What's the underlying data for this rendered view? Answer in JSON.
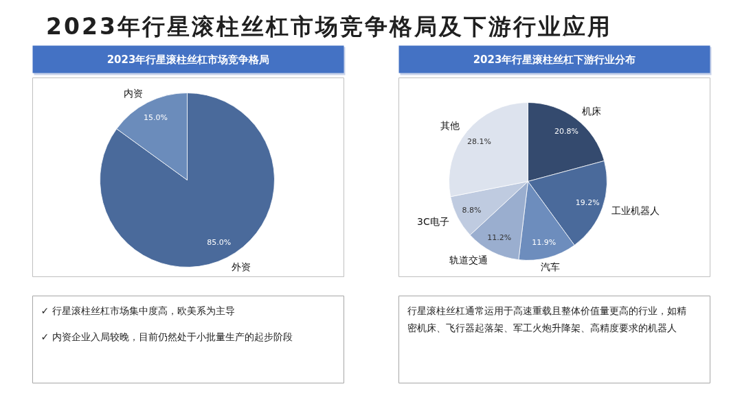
{
  "chart_data": [
    {
      "type": "pie",
      "title": "2023年行星滚柱丝杠市场竞争格局及下游行业应用",
      "subtitle": "2023年行星滚柱丝杠市场竞争格局",
      "categories": [
        "外资",
        "内资"
      ],
      "values": [
        85.0,
        15.0
      ],
      "colors": [
        "#4a6a9b",
        "#6b8cbb"
      ],
      "value_labels": [
        "85.0%",
        "15.0%"
      ],
      "annotations": [
        "✓ 行星滚柱丝杠市场集中度高，欧美系为主导",
        "✓ 内资企业入局较晚，目前仍然处于小批量生产的起步阶段"
      ]
    },
    {
      "type": "pie",
      "subtitle": "2023年行星滚柱丝杠下游行业分布",
      "categories": [
        "机床",
        "工业机器人",
        "汽车",
        "轨道交通",
        "3C电子",
        "其他"
      ],
      "values": [
        20.8,
        19.2,
        11.9,
        11.2,
        8.8,
        28.1
      ],
      "colors": [
        "#344a6e",
        "#4a6a9b",
        "#6d8dbd",
        "#9aaecf",
        "#bfcbe0",
        "#dde3ee"
      ],
      "value_labels": [
        "20.8%",
        "19.2%",
        "11.9%",
        "11.2%",
        "8.8%",
        "28.1%"
      ],
      "annotations": [
        "行星滚柱丝杠通常运用于高速重载且整体价值量更高的行业，如精密机床、飞行器起落架、军工火炮升降架、高精度要求的机器人"
      ]
    }
  ]
}
